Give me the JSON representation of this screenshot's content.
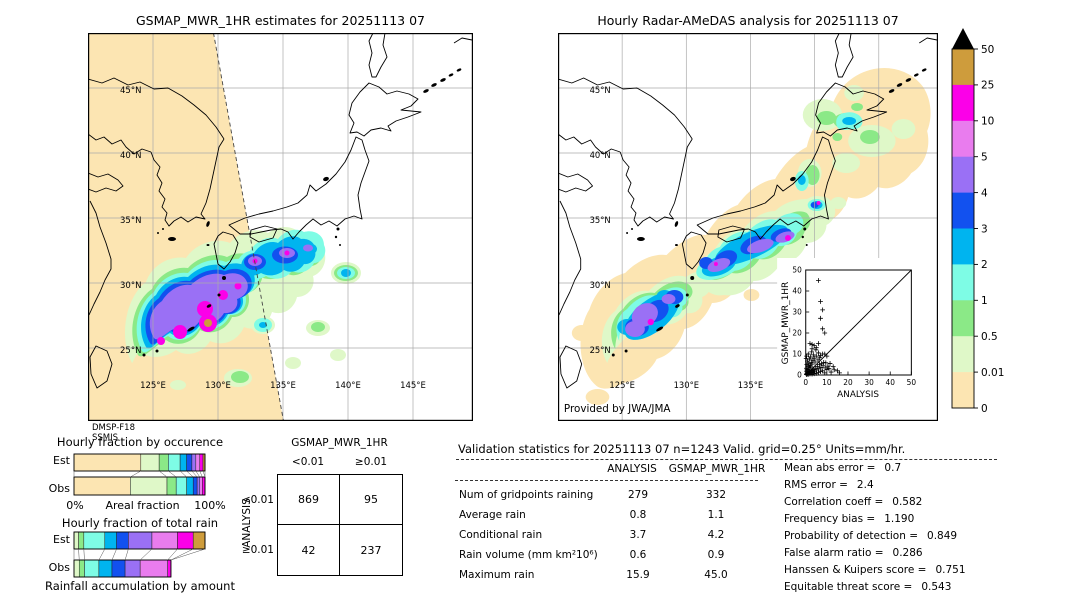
{
  "window": {
    "background": "#ffffff"
  },
  "left_panel": {
    "title": "GSMAP_MWR_1HR estimates for 20251113 07",
    "sensor_line1": "DMSP-F18",
    "sensor_line2": "SSMIS",
    "lat_ticks": [
      "45°N",
      "40°N",
      "35°N",
      "30°N",
      "25°N"
    ],
    "lon_ticks": [
      "125°E",
      "130°E",
      "135°E",
      "140°E",
      "145°E"
    ]
  },
  "right_panel": {
    "title": "Hourly Radar-AMeDAS analysis for 20251113 07",
    "credit": "Provided by JWA/JMA",
    "lat_ticks": [
      "45°N",
      "40°N",
      "35°N",
      "30°N",
      "25°N"
    ],
    "lon_ticks": [
      "125°E",
      "130°E",
      "135°E"
    ]
  },
  "colorbar": {
    "tick_labels": [
      "50",
      "25",
      "10",
      "5",
      "4",
      "3",
      "2",
      "1",
      "0.5",
      "0.01",
      "0"
    ],
    "segment_colors_top_to_bottom": [
      "#ce9c3c",
      "#fb00e8",
      "#e97cee",
      "#9a70f5",
      "#1251ef",
      "#00b4ef",
      "#7efce5",
      "#8be987",
      "#dff8c8",
      "#fce5b2"
    ],
    "overflow_color": "#000000"
  },
  "chart_data": [
    {
      "id": "hourly_fraction_by_occurrence",
      "type": "bar",
      "orientation": "horizontal-stacked",
      "title": "Hourly fraction by occurence",
      "xlabel": "Areal fraction",
      "x_min_label": "0%",
      "x_max_label": "100%",
      "categories": [
        "Est",
        "Obs"
      ],
      "bins_mm_hr": [
        "<0.01",
        "0.01-0.5",
        "0.5-1",
        "1-2",
        "2-3",
        "3-4",
        "4-5",
        "5-10",
        "10-25",
        "25-50"
      ],
      "colors": [
        "#fce5b2",
        "#dff8c8",
        "#8be987",
        "#7efce5",
        "#00b4ef",
        "#1251ef",
        "#9a70f5",
        "#e97cee",
        "#fb00e8",
        "#ce9c3c"
      ],
      "series": [
        {
          "name": "Est",
          "values": [
            51,
            14,
            7,
            9,
            5,
            4,
            3,
            3,
            2.5,
            1.5
          ]
        },
        {
          "name": "Obs",
          "values": [
            43,
            28,
            7,
            8,
            5,
            3,
            2,
            2,
            2,
            0
          ]
        }
      ],
      "xlim_percent": [
        0,
        100
      ]
    },
    {
      "id": "hourly_fraction_of_total_rain",
      "type": "bar",
      "orientation": "horizontal-stacked",
      "title": "Hourly fraction of total rain",
      "caption": "Rainfall accumulation by amount",
      "categories": [
        "Est",
        "Obs"
      ],
      "bins_mm_hr": [
        "0.01-0.5",
        "0.5-1",
        "1-2",
        "2-3",
        "3-4",
        "4-5",
        "5-10",
        "10-25",
        "25-50"
      ],
      "colors": [
        "#dff8c8",
        "#8be987",
        "#7efce5",
        "#00b4ef",
        "#1251ef",
        "#9a70f5",
        "#e97cee",
        "#fb00e8",
        "#ce9c3c"
      ],
      "series": [
        {
          "name": "Est",
          "values": [
            3.5,
            4,
            16,
            9,
            9,
            18,
            19.5,
            12,
            9
          ]
        },
        {
          "name": "Obs",
          "values": [
            4,
            4,
            11,
            10,
            10,
            11.5,
            21,
            2.5,
            0
          ]
        }
      ],
      "xlim_percent": [
        0,
        100
      ]
    },
    {
      "id": "contingency_table",
      "type": "table",
      "col_group": "GSMAP_MWR_1HR",
      "row_group": "ANALYSIS",
      "col_labels": [
        "<0.01",
        "≥0.01"
      ],
      "row_labels": [
        "<0.01",
        "≥0.01"
      ],
      "values": [
        [
          "869",
          "95"
        ],
        [
          "42",
          "237"
        ]
      ]
    },
    {
      "id": "validation_stats",
      "type": "table",
      "header": "Validation statistics for 20251113 07  n=1243 Valid. grid=0.25° Units=mm/hr.",
      "columns": [
        "ANALYSIS",
        "GSMAP_MWR_1HR"
      ],
      "rows": [
        {
          "label": "Num of gridpoints raining",
          "analysis": "279",
          "gsmap": "332"
        },
        {
          "label": "Average rain",
          "analysis": "0.8",
          "gsmap": "1.1"
        },
        {
          "label": "Conditional rain",
          "analysis": "3.7",
          "gsmap": "4.2"
        },
        {
          "label": "Rain volume (mm km²10⁶)",
          "analysis": "0.6",
          "gsmap": "0.9"
        },
        {
          "label": "Maximum rain",
          "analysis": "15.9",
          "gsmap": "45.0"
        }
      ],
      "scores": [
        {
          "label": "Mean abs error =",
          "value": "0.7"
        },
        {
          "label": "RMS error =",
          "value": "2.4"
        },
        {
          "label": "Correlation coeff =",
          "value": "0.582"
        },
        {
          "label": "Frequency bias =",
          "value": "1.190"
        },
        {
          "label": "Probability of detection =",
          "value": "0.849"
        },
        {
          "label": "False alarm ratio =",
          "value": "0.286"
        },
        {
          "label": "Hanssen & Kuipers score =",
          "value": "0.751"
        },
        {
          "label": "Equitable threat score =",
          "value": "0.543"
        }
      ]
    },
    {
      "id": "scatter_inset",
      "type": "scatter",
      "xlabel": "ANALYSIS",
      "ylabel": "GSMAP_MWR_1HR",
      "xlim": [
        0,
        50
      ],
      "ylim": [
        0,
        50
      ],
      "tick_labels": [
        "0",
        "10",
        "20",
        "30",
        "40",
        "50"
      ],
      "identity_line": true,
      "marker": "+",
      "points": [
        [
          0.3,
          0.2
        ],
        [
          0.5,
          0.8
        ],
        [
          0.8,
          0.4
        ],
        [
          1,
          1.2
        ],
        [
          1.2,
          0.3
        ],
        [
          1.5,
          1
        ],
        [
          0.4,
          1.8
        ],
        [
          2,
          0.5
        ],
        [
          1.8,
          1.5
        ],
        [
          2.2,
          1.1
        ],
        [
          0.6,
          2.4
        ],
        [
          2.5,
          2
        ],
        [
          1.1,
          2.8
        ],
        [
          3,
          0.4
        ],
        [
          2.8,
          1.4
        ],
        [
          0.3,
          3.2
        ],
        [
          3.2,
          2.2
        ],
        [
          1.6,
          3.4
        ],
        [
          3.5,
          1
        ],
        [
          2.4,
          3.8
        ],
        [
          4,
          0.6
        ],
        [
          3.8,
          2.6
        ],
        [
          1,
          4.2
        ],
        [
          4.2,
          1.8
        ],
        [
          2,
          4.6
        ],
        [
          4.5,
          3.2
        ],
        [
          0.5,
          5
        ],
        [
          5,
          0.8
        ],
        [
          3,
          5.2
        ],
        [
          5.2,
          2.4
        ],
        [
          1.4,
          5.6
        ],
        [
          5.5,
          4
        ],
        [
          2.6,
          6
        ],
        [
          6,
          1.2
        ],
        [
          4.4,
          6.2
        ],
        [
          6.2,
          3
        ],
        [
          0.8,
          6.6
        ],
        [
          6.5,
          5
        ],
        [
          3.4,
          7
        ],
        [
          7,
          1.6
        ],
        [
          5.8,
          7.2
        ],
        [
          7.2,
          3.6
        ],
        [
          1.8,
          7.6
        ],
        [
          7.5,
          5.4
        ],
        [
          4,
          8
        ],
        [
          8,
          2
        ],
        [
          6.6,
          8.2
        ],
        [
          8.2,
          4.4
        ],
        [
          2.2,
          8.6
        ],
        [
          8.5,
          6
        ],
        [
          5,
          9
        ],
        [
          9,
          1
        ],
        [
          7,
          9.2
        ],
        [
          9.2,
          3.4
        ],
        [
          3.6,
          9.6
        ],
        [
          9.5,
          5.8
        ],
        [
          1.2,
          10
        ],
        [
          10,
          2.6
        ],
        [
          8,
          10
        ],
        [
          10.5,
          4.2
        ],
        [
          6,
          10.5
        ],
        [
          11,
          3
        ],
        [
          2.8,
          11
        ],
        [
          12,
          1.4
        ],
        [
          4.8,
          12
        ],
        [
          13,
          4
        ],
        [
          3,
          12.5
        ],
        [
          15,
          2
        ],
        [
          16,
          1
        ],
        [
          5,
          13
        ],
        [
          4,
          14
        ],
        [
          3,
          14.5
        ],
        [
          2,
          15
        ],
        [
          6,
          15
        ],
        [
          9,
          10
        ],
        [
          10,
          9
        ],
        [
          0.2,
          7.8
        ],
        [
          0.4,
          9
        ],
        [
          11.5,
          5.5
        ],
        [
          13.5,
          2.5
        ],
        [
          9,
          20
        ],
        [
          8,
          22
        ],
        [
          7,
          27
        ],
        [
          8,
          31
        ],
        [
          7,
          35
        ],
        [
          6,
          45
        ]
      ]
    }
  ]
}
